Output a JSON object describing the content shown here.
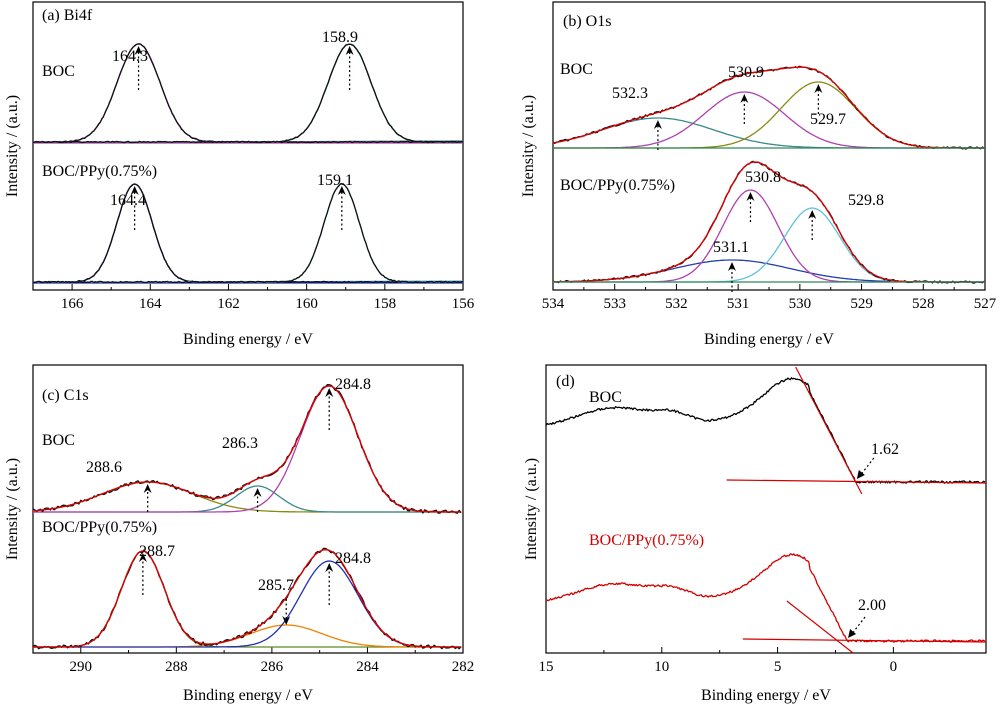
{
  "chart_data": [
    {
      "id": "a",
      "type": "line",
      "title": "(a) Bi4f",
      "xlabel": "Binding energy / eV",
      "ylabel": "Intensity / (a.u.)",
      "xlim": [
        167,
        156
      ],
      "x_ticks": [
        166,
        164,
        162,
        160,
        158,
        156
      ],
      "samples": [
        {
          "label": "BOC",
          "peaks": [
            {
              "center": 164.3,
              "label": "164.3"
            },
            {
              "center": 158.9,
              "label": "158.9"
            }
          ]
        },
        {
          "label": "BOC/PPy(0.75%)",
          "peaks": [
            {
              "center": 164.4,
              "label": "164.4"
            },
            {
              "center": 159.1,
              "label": "159.1"
            }
          ]
        }
      ],
      "colors": {
        "raw": "#000000",
        "fit1": "#b040b0",
        "fit2": "#2e8b7a",
        "fit3": "#2030b0",
        "fit4": "#60c0d8"
      }
    },
    {
      "id": "b",
      "type": "line",
      "title": "(b) O1s",
      "xlabel": "Binding energy / eV",
      "ylabel": "Intensity / (a.u.)",
      "xlim": [
        534,
        527
      ],
      "x_ticks": [
        534,
        533,
        532,
        531,
        530,
        529,
        528,
        527
      ],
      "samples": [
        {
          "label": "BOC",
          "peaks": [
            {
              "center": 532.3,
              "label": "532.3",
              "color": "#3a8a8a"
            },
            {
              "center": 530.9,
              "label": "530.9",
              "color": "#b040b0"
            },
            {
              "center": 529.7,
              "label": "529.7",
              "color": "#8a8a10"
            }
          ]
        },
        {
          "label": "BOC/PPy(0.75%)",
          "peaks": [
            {
              "center": 531.1,
              "label": "531.1",
              "color": "#2040b0"
            },
            {
              "center": 530.8,
              "label": "530.8",
              "color": "#b040b0"
            },
            {
              "center": 529.8,
              "label": "529.8",
              "color": "#60c0d8"
            }
          ]
        }
      ],
      "colors": {
        "raw": "#000000",
        "envelope": "#e00000"
      }
    },
    {
      "id": "c",
      "type": "line",
      "title": "(c) C1s",
      "xlabel": "Binding energy / eV",
      "ylabel": "Intensity / (a.u.)",
      "xlim": [
        291,
        282
      ],
      "x_ticks": [
        290,
        288,
        286,
        284,
        282
      ],
      "samples": [
        {
          "label": "BOC",
          "peaks": [
            {
              "center": 288.6,
              "label": "288.6",
              "color": "#8a8a10"
            },
            {
              "center": 286.3,
              "label": "286.3",
              "color": "#3a8a8a"
            },
            {
              "center": 284.8,
              "label": "284.8",
              "color": "#b040b0"
            }
          ]
        },
        {
          "label": "BOC/PPy(0.75%)",
          "peaks": [
            {
              "center": 288.7,
              "label": "288.7",
              "color": "#5a8a20"
            },
            {
              "center": 285.7,
              "label": "285.7",
              "color": "#f08000"
            },
            {
              "center": 284.8,
              "label": "284.8",
              "color": "#2030b0"
            }
          ]
        }
      ],
      "colors": {
        "raw": "#000000",
        "envelope": "#e00000"
      }
    },
    {
      "id": "d",
      "type": "line",
      "title": "(d)",
      "xlabel": "Binding energy / eV",
      "ylabel": "Intensity / (a.u.)",
      "xlim": [
        15,
        -4
      ],
      "x_ticks": [
        15,
        10,
        5,
        0
      ],
      "samples": [
        {
          "label": "BOC",
          "color": "#000000",
          "band_edge": 1.62,
          "band_edge_label": "1.62"
        },
        {
          "label": "BOC/PPy(0.75%)",
          "color": "#d40000",
          "band_edge": 2.0,
          "band_edge_label": "2.00"
        }
      ],
      "colors": {
        "tangent": "#d40000"
      }
    }
  ]
}
